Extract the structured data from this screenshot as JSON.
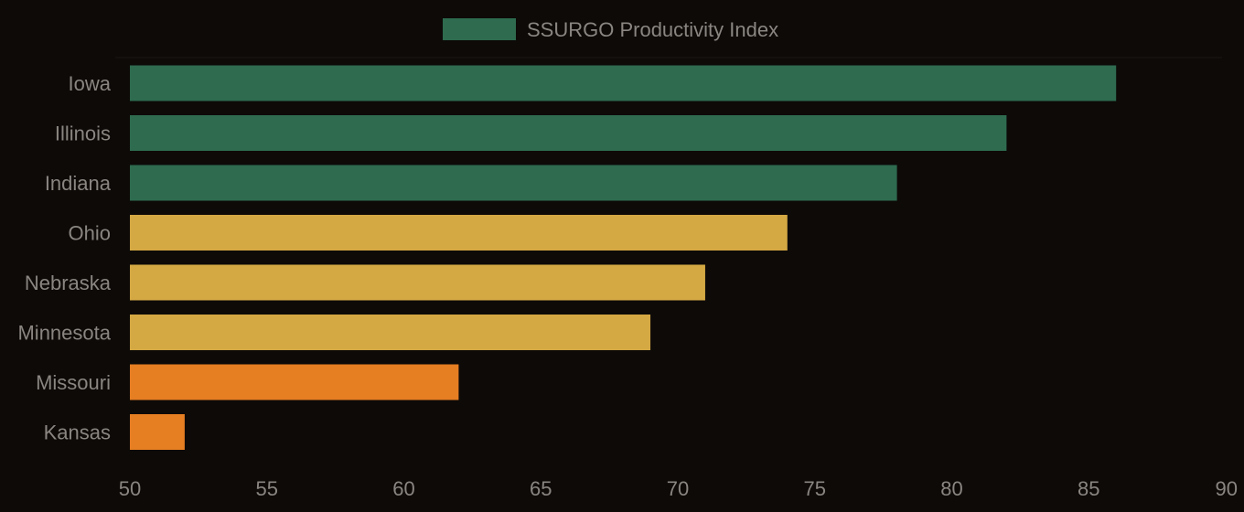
{
  "chart_data": {
    "type": "bar",
    "orientation": "horizontal",
    "categories": [
      "Iowa",
      "Illinois",
      "Indiana",
      "Ohio",
      "Nebraska",
      "Minnesota",
      "Missouri",
      "Kansas"
    ],
    "series": [
      {
        "name": "SSURGO Productivity Index",
        "values": [
          86,
          82,
          78,
          74,
          71,
          69,
          62,
          52
        ],
        "colors": [
          "#2e6b4f",
          "#2e6b4f",
          "#2e6b4f",
          "#d4a843",
          "#d4a843",
          "#d4a843",
          "#e67e22",
          "#e67e22"
        ]
      }
    ],
    "xlim": [
      50,
      90
    ],
    "xticks": [
      "50",
      "55",
      "60",
      "65",
      "70",
      "75",
      "80",
      "85",
      "90"
    ],
    "legend": {
      "position": "top-center",
      "label": "SSURGO Productivity Index",
      "color": "#2e6b4f"
    },
    "grid": false,
    "colors": {
      "background": "#0d0a08",
      "text": "#8a8580"
    }
  }
}
